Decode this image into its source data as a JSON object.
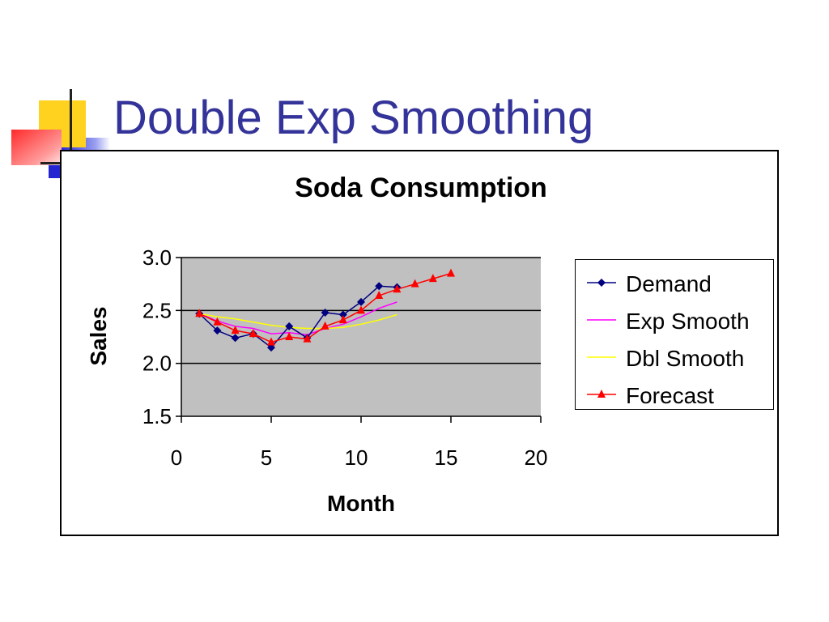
{
  "slide": {
    "title": "Double Exp Smoothing"
  },
  "chart_data": {
    "type": "line",
    "title": "Soda Consumption",
    "xlabel": "Month",
    "ylabel": "Sales",
    "xlim": [
      0,
      20
    ],
    "ylim": [
      1.5,
      3.0
    ],
    "xticks": [
      "0",
      "5",
      "10",
      "15",
      "20"
    ],
    "yticks": [
      "1.5",
      "2.0",
      "2.5",
      "3.0"
    ],
    "grid": "horizontal",
    "plot_background": "#c0c0c0",
    "legend_position": "right",
    "series": [
      {
        "name": "Demand",
        "color": "#000080",
        "marker": "diamond",
        "x": [
          1,
          2,
          3,
          4,
          5,
          6,
          7,
          8,
          9,
          10,
          11,
          12
        ],
        "y": [
          2.47,
          2.31,
          2.24,
          2.28,
          2.15,
          2.35,
          2.24,
          2.48,
          2.46,
          2.58,
          2.73,
          2.72
        ]
      },
      {
        "name": "Exp Smooth",
        "color": "#ff00ff",
        "marker": "none",
        "x": [
          1,
          2,
          3,
          4,
          5,
          6,
          7,
          8,
          9,
          10,
          11,
          12
        ],
        "y": [
          2.47,
          2.4,
          2.35,
          2.33,
          2.28,
          2.29,
          2.27,
          2.33,
          2.37,
          2.44,
          2.52,
          2.58
        ]
      },
      {
        "name": "Dbl Smooth",
        "color": "#ffff00",
        "marker": "none",
        "x": [
          1,
          2,
          3,
          4,
          5,
          6,
          7,
          8,
          9,
          10,
          11,
          12
        ],
        "y": [
          2.47,
          2.44,
          2.42,
          2.39,
          2.36,
          2.34,
          2.33,
          2.33,
          2.34,
          2.37,
          2.41,
          2.46
        ]
      },
      {
        "name": "Forecast",
        "color": "#ff0000",
        "marker": "triangle",
        "x": [
          1,
          2,
          3,
          4,
          5,
          6,
          7,
          8,
          9,
          10,
          11,
          12,
          13,
          14,
          15
        ],
        "y": [
          2.47,
          2.39,
          2.31,
          2.28,
          2.2,
          2.25,
          2.23,
          2.35,
          2.41,
          2.5,
          2.64,
          2.7,
          2.75,
          2.8,
          2.85
        ]
      }
    ]
  }
}
